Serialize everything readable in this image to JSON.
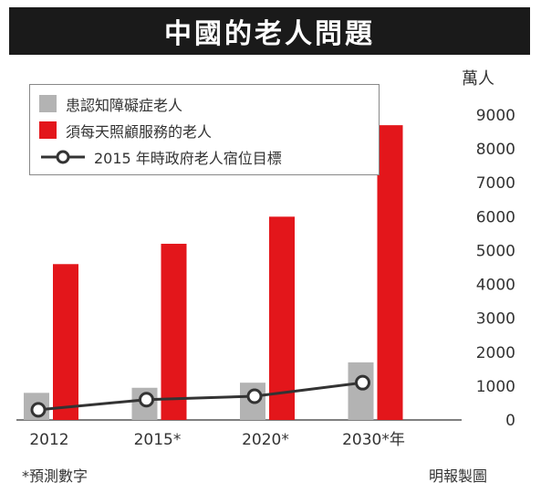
{
  "title": "中國的老人問題",
  "unit": "萬人",
  "footnote": "*預測數字",
  "credit": "明報製圖",
  "colors": {
    "dementia": "#b3b3b3",
    "care": "#e3161b",
    "target_line": "#333333",
    "title_bg": "#1a1a1a"
  },
  "legend": [
    {
      "label": "患認知障礙症老人",
      "marker": "gray-square"
    },
    {
      "label": "須每天照顧服務的老人",
      "marker": "red-square"
    },
    {
      "label": "2015 年時政府老人宿位目標",
      "marker": "line-circle"
    }
  ],
  "chart_data": {
    "type": "bar",
    "categories": [
      "2012",
      "2015*",
      "2020*",
      "2030*年"
    ],
    "series": [
      {
        "name": "患認知障礙症老人",
        "type": "bar",
        "values": [
          800,
          950,
          1100,
          1700
        ]
      },
      {
        "name": "須每天照顧服務的老人",
        "type": "bar",
        "values": [
          4600,
          5200,
          6000,
          8700
        ]
      },
      {
        "name": "2015 年時政府老人宿位目標",
        "type": "line",
        "values": [
          300,
          600,
          700,
          1100
        ]
      }
    ],
    "ylim": [
      0,
      9000
    ],
    "yticks": [
      0,
      1000,
      2000,
      3000,
      4000,
      5000,
      6000,
      7000,
      8000,
      9000
    ],
    "ylabel": "萬人",
    "legend_position": "top-left",
    "grid": false
  }
}
